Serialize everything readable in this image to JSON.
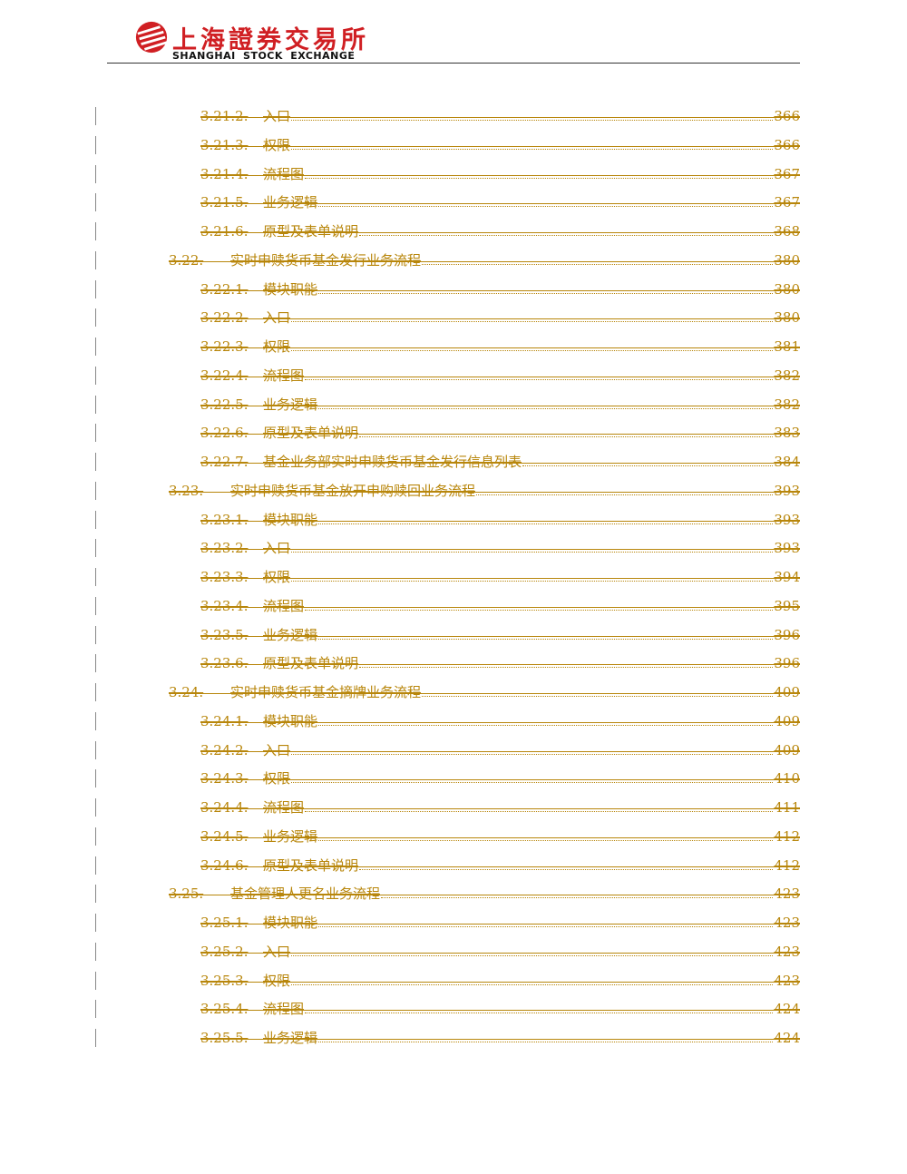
{
  "header": {
    "logo_cn": "上海證券交易所",
    "logo_en": "SHANGHAI STOCK EXCHANGE"
  },
  "colors": {
    "toc_text": "#b8860b",
    "logo_red": "#d01f23"
  },
  "toc": [
    {
      "level": 3,
      "number": "3.21.2.",
      "title": "入口",
      "page": "366"
    },
    {
      "level": 3,
      "number": "3.21.3.",
      "title": "权限",
      "page": "366"
    },
    {
      "level": 3,
      "number": "3.21.4.",
      "title": "流程图",
      "page": "367"
    },
    {
      "level": 3,
      "number": "3.21.5.",
      "title": "业务逻辑",
      "page": "367"
    },
    {
      "level": 3,
      "number": "3.21.6.",
      "title": "原型及表单说明",
      "page": "368"
    },
    {
      "level": 2,
      "number": "3.22.",
      "title": "实时申赎货币基金发行业务流程",
      "page": "380"
    },
    {
      "level": 3,
      "number": "3.22.1.",
      "title": "模块职能",
      "page": "380"
    },
    {
      "level": 3,
      "number": "3.22.2.",
      "title": "入口",
      "page": "380"
    },
    {
      "level": 3,
      "number": "3.22.3.",
      "title": "权限",
      "page": "381"
    },
    {
      "level": 3,
      "number": "3.22.4.",
      "title": "流程图",
      "page": "382"
    },
    {
      "level": 3,
      "number": "3.22.5.",
      "title": "业务逻辑",
      "page": "382"
    },
    {
      "level": 3,
      "number": "3.22.6.",
      "title": "原型及表单说明",
      "page": "383"
    },
    {
      "level": 3,
      "number": "3.22.7.",
      "title": "基金业务部实时申赎货币基金发行信息列表",
      "page": "384"
    },
    {
      "level": 2,
      "number": "3.23.",
      "title": "实时申赎货币基金放开申购赎回业务流程",
      "page": "393"
    },
    {
      "level": 3,
      "number": "3.23.1.",
      "title": "模块职能",
      "page": "393"
    },
    {
      "level": 3,
      "number": "3.23.2.",
      "title": "入口",
      "page": "393"
    },
    {
      "level": 3,
      "number": "3.23.3.",
      "title": "权限",
      "page": "394"
    },
    {
      "level": 3,
      "number": "3.23.4.",
      "title": "流程图",
      "page": "395"
    },
    {
      "level": 3,
      "number": "3.23.5.",
      "title": "业务逻辑",
      "page": "396"
    },
    {
      "level": 3,
      "number": "3.23.6.",
      "title": "原型及表单说明",
      "page": "396"
    },
    {
      "level": 2,
      "number": "3.24.",
      "title": "实时申赎货币基金摘牌业务流程",
      "page": "409"
    },
    {
      "level": 3,
      "number": "3.24.1.",
      "title": "模块职能",
      "page": "409"
    },
    {
      "level": 3,
      "number": "3.24.2.",
      "title": "入口",
      "page": "409"
    },
    {
      "level": 3,
      "number": "3.24.3.",
      "title": "权限",
      "page": "410"
    },
    {
      "level": 3,
      "number": "3.24.4.",
      "title": "流程图",
      "page": "411"
    },
    {
      "level": 3,
      "number": "3.24.5.",
      "title": "业务逻辑",
      "page": "412"
    },
    {
      "level": 3,
      "number": "3.24.6.",
      "title": "原型及表单说明",
      "page": "412"
    },
    {
      "level": 2,
      "number": "3.25.",
      "title": "基金管理人更名业务流程",
      "page": "423"
    },
    {
      "level": 3,
      "number": "3.25.1.",
      "title": "模块职能",
      "page": "423"
    },
    {
      "level": 3,
      "number": "3.25.2.",
      "title": "入口",
      "page": "423"
    },
    {
      "level": 3,
      "number": "3.25.3.",
      "title": "权限",
      "page": "423"
    },
    {
      "level": 3,
      "number": "3.25.4.",
      "title": "流程图",
      "page": "424"
    },
    {
      "level": 3,
      "number": "3.25.5.",
      "title": "业务逻辑",
      "page": "424"
    }
  ]
}
